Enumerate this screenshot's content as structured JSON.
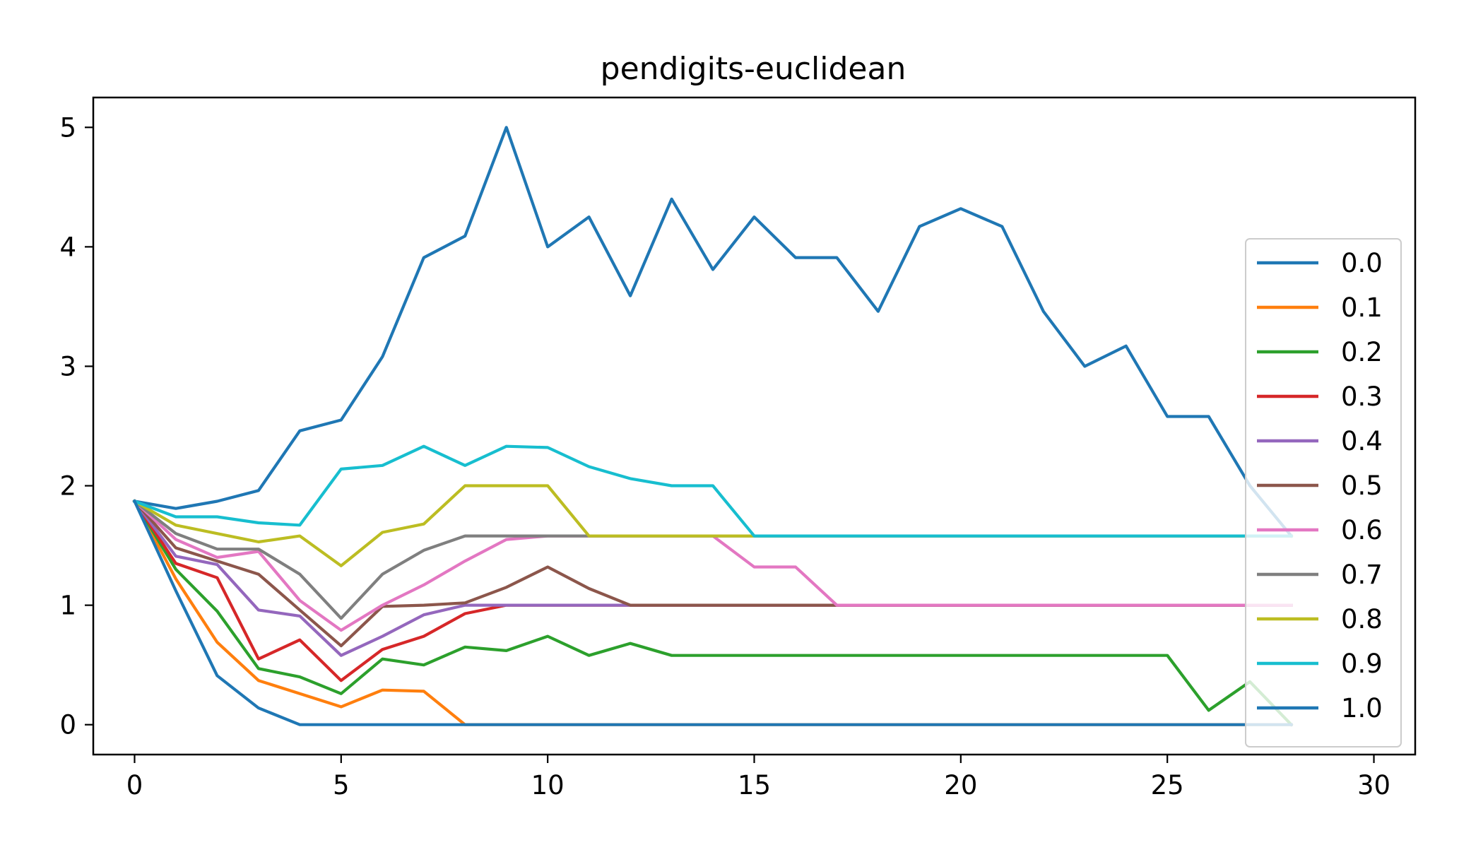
{
  "chart_data": {
    "type": "line",
    "title": "pendigits-euclidean",
    "xlabel": "",
    "ylabel": "",
    "xlim": [
      -1,
      31
    ],
    "ylim": [
      -0.25,
      5.25
    ],
    "xticks": [
      0,
      5,
      10,
      15,
      20,
      25,
      30
    ],
    "yticks": [
      0,
      1,
      2,
      3,
      4,
      5
    ],
    "grid": false,
    "legend_position": "right",
    "x": [
      0,
      1,
      2,
      3,
      4,
      5,
      6,
      7,
      8,
      9,
      10,
      11,
      12,
      13,
      14,
      15,
      16,
      17,
      18,
      19,
      20,
      21,
      22,
      23,
      24,
      25,
      26,
      27,
      28
    ],
    "series": [
      {
        "name": "0.0",
        "color": "#1f77b4",
        "values": [
          1.87,
          1.81,
          1.87,
          1.96,
          2.46,
          2.55,
          3.08,
          3.91,
          4.09,
          5.0,
          4.0,
          4.25,
          3.59,
          4.4,
          3.81,
          4.25,
          3.91,
          3.91,
          3.46,
          4.17,
          4.32,
          4.17,
          3.46,
          3.0,
          3.17,
          2.58,
          2.58,
          2.0,
          1.58
        ]
      },
      {
        "name": "0.1",
        "color": "#ff7f0e",
        "values": [
          1.87,
          1.22,
          0.69,
          0.37,
          0.26,
          0.15,
          0.29,
          0.28,
          0,
          0,
          0,
          0,
          0,
          0,
          0,
          0,
          0,
          0,
          0,
          0,
          0,
          0,
          0,
          0,
          0,
          0,
          0,
          0,
          0
        ]
      },
      {
        "name": "0.2",
        "color": "#2ca02c",
        "values": [
          1.87,
          1.3,
          0.95,
          0.47,
          0.4,
          0.26,
          0.55,
          0.5,
          0.65,
          0.62,
          0.74,
          0.58,
          0.68,
          0.58,
          0.58,
          0.58,
          0.58,
          0.58,
          0.58,
          0.58,
          0.58,
          0.58,
          0.58,
          0.58,
          0.58,
          0.58,
          0.12,
          0.36,
          0
        ]
      },
      {
        "name": "0.3",
        "color": "#d62728",
        "values": [
          1.87,
          1.35,
          1.23,
          0.55,
          0.71,
          0.37,
          0.63,
          0.74,
          0.93,
          1.0,
          1.0,
          1.0,
          1.0,
          1.0,
          1.0,
          1.0,
          1.0,
          1.0,
          1.0,
          1.0,
          1.0,
          1.0,
          1.0,
          1.0,
          1.0,
          1.0,
          1.0,
          1.0,
          1.0
        ]
      },
      {
        "name": "0.4",
        "color": "#9467bd",
        "values": [
          1.87,
          1.41,
          1.34,
          0.96,
          0.91,
          0.58,
          0.74,
          0.92,
          1.0,
          1.0,
          1.0,
          1.0,
          1.0,
          1.0,
          1.0,
          1.0,
          1.0,
          1.0,
          1.0,
          1.0,
          1.0,
          1.0,
          1.0,
          1.0,
          1.0,
          1.0,
          1.0,
          1.0,
          1.0
        ]
      },
      {
        "name": "0.5",
        "color": "#8c564b",
        "values": [
          1.87,
          1.48,
          1.37,
          1.26,
          0.96,
          0.66,
          0.99,
          1.0,
          1.02,
          1.15,
          1.32,
          1.14,
          1.0,
          1.0,
          1.0,
          1.0,
          1.0,
          1.0,
          1.0,
          1.0,
          1.0,
          1.0,
          1.0,
          1.0,
          1.0,
          1.0,
          1.0,
          1.0,
          1.0
        ]
      },
      {
        "name": "0.6",
        "color": "#e377c2",
        "values": [
          1.87,
          1.55,
          1.4,
          1.45,
          1.04,
          0.79,
          1.0,
          1.17,
          1.37,
          1.55,
          1.58,
          1.58,
          1.58,
          1.58,
          1.58,
          1.32,
          1.32,
          1.0,
          1.0,
          1.0,
          1.0,
          1.0,
          1.0,
          1.0,
          1.0,
          1.0,
          1.0,
          1.0,
          1.0
        ]
      },
      {
        "name": "0.7",
        "color": "#7f7f7f",
        "values": [
          1.87,
          1.6,
          1.47,
          1.47,
          1.26,
          0.89,
          1.26,
          1.46,
          1.58,
          1.58,
          1.58,
          1.58,
          1.58,
          1.58,
          1.58,
          1.58,
          1.58,
          1.58,
          1.58,
          1.58,
          1.58,
          1.58,
          1.58,
          1.58,
          1.58,
          1.58,
          1.58,
          1.58,
          1.58
        ]
      },
      {
        "name": "0.8",
        "color": "#bcbd22",
        "values": [
          1.87,
          1.67,
          1.6,
          1.53,
          1.58,
          1.33,
          1.61,
          1.68,
          2.0,
          2.0,
          2.0,
          1.58,
          1.58,
          1.58,
          1.58,
          1.58,
          1.58,
          1.58,
          1.58,
          1.58,
          1.58,
          1.58,
          1.58,
          1.58,
          1.58,
          1.58,
          1.58,
          1.58,
          1.58
        ]
      },
      {
        "name": "0.9",
        "color": "#17becf",
        "values": [
          1.87,
          1.74,
          1.74,
          1.69,
          1.67,
          2.14,
          2.17,
          2.33,
          2.17,
          2.33,
          2.32,
          2.16,
          2.06,
          2.0,
          2.0,
          1.58,
          1.58,
          1.58,
          1.58,
          1.58,
          1.58,
          1.58,
          1.58,
          1.58,
          1.58,
          1.58,
          1.58,
          1.58,
          1.58
        ]
      },
      {
        "name": "1.0",
        "color": "#1f77b4",
        "values": [
          1.87,
          1.12,
          0.41,
          0.14,
          0,
          0,
          0,
          0,
          0,
          0,
          0,
          0,
          0,
          0,
          0,
          0,
          0,
          0,
          0,
          0,
          0,
          0,
          0,
          0,
          0,
          0,
          0,
          0,
          0
        ]
      }
    ]
  }
}
